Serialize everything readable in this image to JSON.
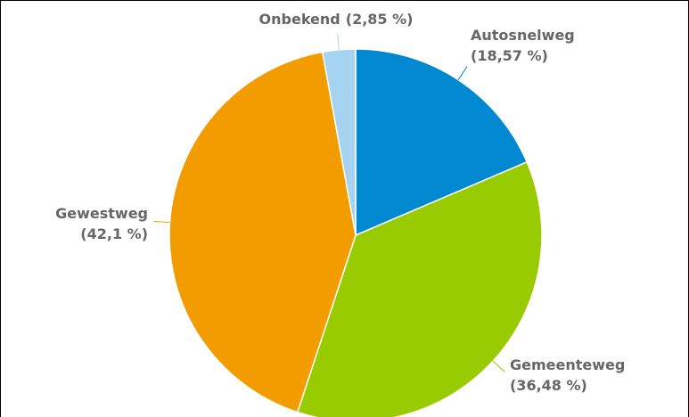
{
  "chart_data": {
    "type": "pie",
    "categories": [
      "Autosnelweg",
      "Gemeenteweg",
      "Gewestweg",
      "Onbekend"
    ],
    "values": [
      18.57,
      36.48,
      42.1,
      2.85
    ],
    "value_labels": [
      "(18,57 %)",
      "(36,48 %)",
      "(42,1 %)",
      "(2,85 %)"
    ],
    "colors": [
      "#0088d1",
      "#99cc00",
      "#f39c00",
      "#a6d3f0"
    ]
  }
}
